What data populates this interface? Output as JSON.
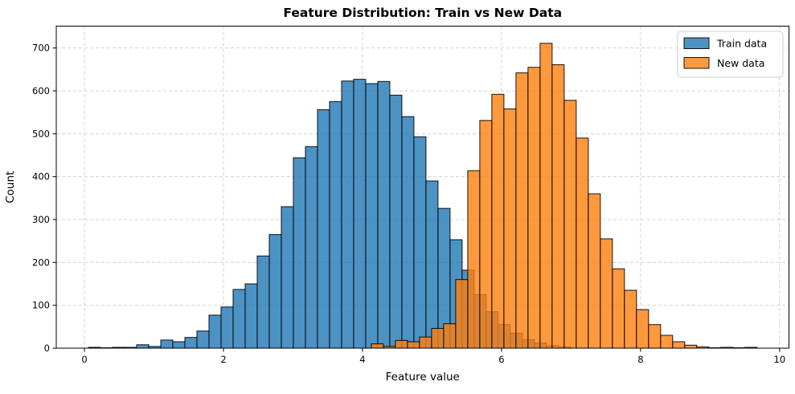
{
  "chart_data": {
    "type": "histogram",
    "title": "Feature Distribution: Train vs New Data",
    "xlabel": "Feature value",
    "ylabel": "Count",
    "xticks": [
      0,
      2,
      4,
      6,
      8,
      10
    ],
    "yticks": [
      0,
      100,
      200,
      300,
      400,
      500,
      600,
      700
    ],
    "xlim": [
      -0.405,
      10.135
    ],
    "ylim": [
      0,
      751
    ],
    "grid": true,
    "grid_color": "#cccccc",
    "background": "#ffffff",
    "edge_color": "#000000",
    "bar_alpha": 0.8,
    "bin_width": 0.1734,
    "legend_position": "upper right",
    "series": [
      {
        "name": "Train data",
        "color": "#1f77b4",
        "bin_start": 0.058,
        "counts": [
          2,
          1,
          2,
          2,
          8,
          4,
          19,
          15,
          25,
          40,
          77,
          96,
          137,
          150,
          215,
          265,
          330,
          444,
          470,
          556,
          575,
          623,
          627,
          617,
          622,
          590,
          540,
          493,
          390,
          326,
          253,
          182,
          125,
          85,
          55,
          35,
          20,
          12,
          6,
          3
        ]
      },
      {
        "name": "New data",
        "color": "#ff7f0e",
        "bin_start": 4.127,
        "counts": [
          10,
          4,
          18,
          15,
          26,
          46,
          57,
          160,
          414,
          531,
          592,
          558,
          642,
          655,
          711,
          661,
          578,
          490,
          360,
          255,
          185,
          135,
          90,
          55,
          30,
          15,
          7,
          3,
          1,
          2,
          1,
          2
        ]
      }
    ]
  }
}
